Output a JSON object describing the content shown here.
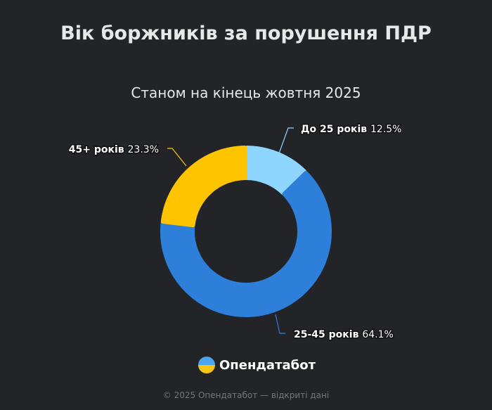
{
  "chart_data": {
    "type": "pie",
    "donut": true,
    "title": "Вік боржників за порушення ПДР",
    "subtitle": "Станом на кінець жовтня 2025",
    "slices": [
      {
        "label": "До 25 років",
        "value": 12.5,
        "value_label": "12.5%",
        "color": "#8fd6ff"
      },
      {
        "label": "25-45 років",
        "value": 64.1,
        "value_label": "64.1%",
        "color": "#2d7fd9"
      },
      {
        "label": "45+ років",
        "value": 23.3,
        "value_label": "23.3%",
        "color": "#ffc400"
      }
    ]
  },
  "brand": {
    "name": "Опендатабот",
    "icon": "opendatabot-logo"
  },
  "footer": "© 2025 Опендатабот — відкриті дані"
}
